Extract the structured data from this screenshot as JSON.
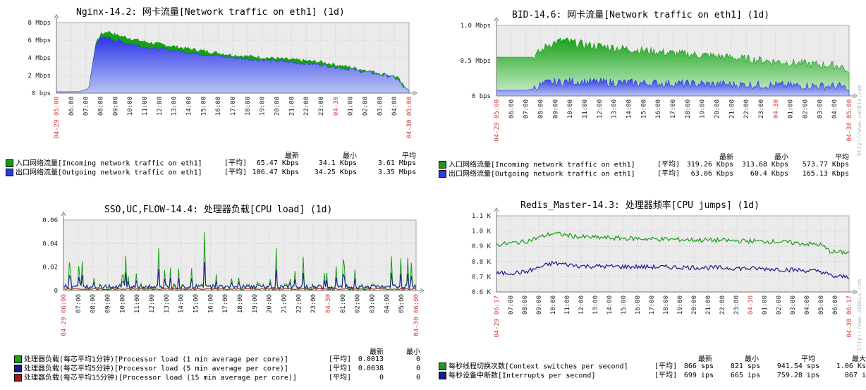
{
  "watermark": "http://www.zabbix.com",
  "headers": {
    "last": "最新",
    "min": "最小",
    "avg": "平均",
    "max": "最大"
  },
  "chart_data": [
    {
      "type": "area",
      "title": "Nginx-14.2: 网卡流量[Network traffic on eth1] (1d)",
      "y_ticks": [
        "8 Mbps",
        "6 Mbps",
        "4 Mbps",
        "2 Mbps",
        "0 bps"
      ],
      "ylim": [
        0,
        8
      ],
      "x_ticks": [
        "04-29 05:00",
        "06:00",
        "07:00",
        "08:00",
        "09:00",
        "10:00",
        "11:00",
        "12:00",
        "13:00",
        "14:00",
        "15:00",
        "16:00",
        "17:00",
        "18:00",
        "19:00",
        "20:00",
        "21:00",
        "22:00",
        "23:00",
        "04-30",
        "01:00",
        "02:00",
        "03:00",
        "04:00",
        "04-30 05:00"
      ],
      "x_red": [
        0,
        19,
        24
      ],
      "series": [
        {
          "name": "入口网络流量[Incoming network traffic on eth1]",
          "fn": "[平均]",
          "color": "#1A9C1A",
          "last": "65.47 Kbps",
          "min": "34.1 Kbps",
          "avg": "3.61 Mbps",
          "profile": [
            [
              0,
              0.15
            ],
            [
              1.5,
              0.15
            ],
            [
              2.2,
              0.5
            ],
            [
              2.7,
              5.8
            ],
            [
              3,
              6.6
            ],
            [
              3.5,
              7.0
            ],
            [
              4,
              6.6
            ],
            [
              6,
              5.8
            ],
            [
              9,
              5.0
            ],
            [
              12,
              4.3
            ],
            [
              15,
              3.9
            ],
            [
              18,
              3.5
            ],
            [
              21,
              2.6
            ],
            [
              22.7,
              2.0
            ],
            [
              23.2,
              1.8
            ],
            [
              23.6,
              0.8
            ],
            [
              24,
              0.3
            ]
          ]
        },
        {
          "name": "出口网络流量[Outgoing network traffic on eth1]",
          "fn": "[平均]",
          "color": "#2D3BE0",
          "last": "106.47 Kbps",
          "min": "34.25 Kbps",
          "avg": "3.35 Mbps",
          "profile": [
            [
              0,
              0.15
            ],
            [
              1.5,
              0.15
            ],
            [
              2.2,
              0.5
            ],
            [
              2.7,
              5.7
            ],
            [
              3,
              6.2
            ],
            [
              3.5,
              6.3
            ],
            [
              4,
              6.0
            ],
            [
              6,
              5.2
            ],
            [
              9,
              4.6
            ],
            [
              12,
              4.0
            ],
            [
              15,
              3.6
            ],
            [
              18,
              3.2
            ],
            [
              21,
              2.4
            ],
            [
              22.7,
              1.9
            ],
            [
              23.2,
              1.6
            ],
            [
              23.6,
              0.7
            ],
            [
              24,
              0.3
            ]
          ]
        }
      ]
    },
    {
      "type": "area",
      "title": "BID-14.6: 网卡流量[Network traffic on eth1] (1d)",
      "y_ticks": [
        "1.0 Mbps",
        "0.5 Mbps",
        "0 bps"
      ],
      "ylim": [
        0,
        1
      ],
      "x_ticks": [
        "04-29 05:00",
        "06:00",
        "07:00",
        "08:00",
        "09:00",
        "10:00",
        "11:00",
        "12:00",
        "13:00",
        "14:00",
        "15:00",
        "16:00",
        "17:00",
        "18:00",
        "19:00",
        "20:00",
        "21:00",
        "22:00",
        "23:00",
        "04-30",
        "01:00",
        "02:00",
        "03:00",
        "04:00",
        "04-30 05:00"
      ],
      "x_red": [
        0,
        19,
        24
      ],
      "series": [
        {
          "name": "入口网络流量[Incoming network traffic on eth1]",
          "fn": "[平均]",
          "color": "#1A9C1A",
          "last": "319.26 Kbps",
          "min": "313.68 Kbps",
          "avg": "573.77 Kbps",
          "profile": [
            [
              0,
              0.55
            ],
            [
              2.5,
              0.55
            ],
            [
              3,
              0.62
            ],
            [
              3.5,
              0.72
            ],
            [
              4.5,
              0.78
            ],
            [
              6,
              0.72
            ],
            [
              9,
              0.66
            ],
            [
              12,
              0.6
            ],
            [
              15,
              0.56
            ],
            [
              18,
              0.5
            ],
            [
              21,
              0.45
            ],
            [
              23.5,
              0.42
            ],
            [
              24,
              0.32
            ]
          ]
        },
        {
          "name": "出口网络流量[Outgoing network traffic on eth1]",
          "fn": "[平均]",
          "color": "#2D3BE0",
          "last": "63.06 Kbps",
          "min": "60.4 Kbps",
          "avg": "165.13 Kbps",
          "profile": [
            [
              0,
              0.08
            ],
            [
              2,
              0.08
            ],
            [
              2.5,
              0.1
            ],
            [
              3,
              0.15
            ],
            [
              3.5,
              0.18
            ],
            [
              5,
              0.2
            ],
            [
              9,
              0.18
            ],
            [
              12,
              0.17
            ],
            [
              15,
              0.16
            ],
            [
              18,
              0.15
            ],
            [
              21,
              0.14
            ],
            [
              23.5,
              0.13
            ],
            [
              24,
              0.07
            ]
          ]
        }
      ]
    },
    {
      "type": "line",
      "title": "SSO,UC,FLOW-14.4: 处理器负载[CPU load] (1d)",
      "y_ticks": [
        "0.06",
        "0.04",
        "0.02",
        "0"
      ],
      "ylim": [
        0,
        0.06
      ],
      "x_ticks": [
        "04-29 06:00",
        "07:00",
        "08:00",
        "09:00",
        "10:00",
        "11:00",
        "12:00",
        "13:00",
        "14:00",
        "15:00",
        "16:00",
        "17:00",
        "18:00",
        "19:00",
        "20:00",
        "21:00",
        "22:00",
        "23:00",
        "04-30",
        "01:00",
        "02:00",
        "03:00",
        "04:00",
        "05:00",
        "04-30 06:00"
      ],
      "x_red": [
        0,
        18,
        24
      ],
      "series": [
        {
          "name": "处理器负载(每芯平均1分钟)[Processor load (1 min average per core)]",
          "fn": "[平均]",
          "color": "#1A9C1A",
          "last": "0.0013",
          "min": "0",
          "avg": ""
        },
        {
          "name": "处理器负载(每芯平均5分钟)[Processor load (5 min average per core)]",
          "fn": "[平均]",
          "color": "#1A1A8C",
          "last": "0.0038",
          "min": "0",
          "avg": ""
        },
        {
          "name": "处理器负载(每芯平均15分钟)[Processor load (15 min average per core)]",
          "fn": "[平均]",
          "color": "#9C1A1A",
          "last": "0",
          "min": "0",
          "avg": ""
        }
      ]
    },
    {
      "type": "line",
      "title": "Redis_Master-14.3: 处理器频率[CPU jumps] (1d)",
      "y_ticks": [
        "1.1 K",
        "1.0 K",
        "0.9 K",
        "0.8 K",
        "0.7 K",
        "0.6 K"
      ],
      "ylim": [
        600,
        1100
      ],
      "x_ticks": [
        "04-29 06:17",
        "07:00",
        "08:00",
        "09:00",
        "10:00",
        "11:00",
        "12:00",
        "13:00",
        "14:00",
        "15:00",
        "16:00",
        "17:00",
        "18:00",
        "19:00",
        "20:00",
        "21:00",
        "22:00",
        "23:00",
        "04-30",
        "01:00",
        "02:00",
        "03:00",
        "04:00",
        "05:00",
        "06:00",
        "04-30 06:17"
      ],
      "x_red": [
        0,
        18,
        25
      ],
      "series": [
        {
          "name": "每秒线程切换次数[Context switches per second]",
          "fn": "[平均]",
          "color": "#1A9C1A",
          "last": "866 sps",
          "min": "821 sps",
          "avg": "941.54 sps",
          "max": "1.06 Ks",
          "profile": [
            [
              0,
              910
            ],
            [
              2,
              930
            ],
            [
              4,
              985
            ],
            [
              6,
              960
            ],
            [
              10,
              950
            ],
            [
              15,
              940
            ],
            [
              20,
              930
            ],
            [
              23,
              910
            ],
            [
              23.6,
              870
            ],
            [
              24,
              860
            ]
          ]
        },
        {
          "name": "每秒设备中断数[Interrupts per second]",
          "fn": "[平均]",
          "color": "#1A1A8C",
          "last": "699 ips",
          "min": "665 ips",
          "avg": "759.28 ips",
          "max": "867 i",
          "profile": [
            [
              0,
              720
            ],
            [
              2,
              730
            ],
            [
              4,
              790
            ],
            [
              6,
              770
            ],
            [
              10,
              765
            ],
            [
              15,
              760
            ],
            [
              20,
              750
            ],
            [
              23,
              735
            ],
            [
              23.6,
              710
            ],
            [
              24,
              700
            ]
          ]
        }
      ]
    }
  ]
}
